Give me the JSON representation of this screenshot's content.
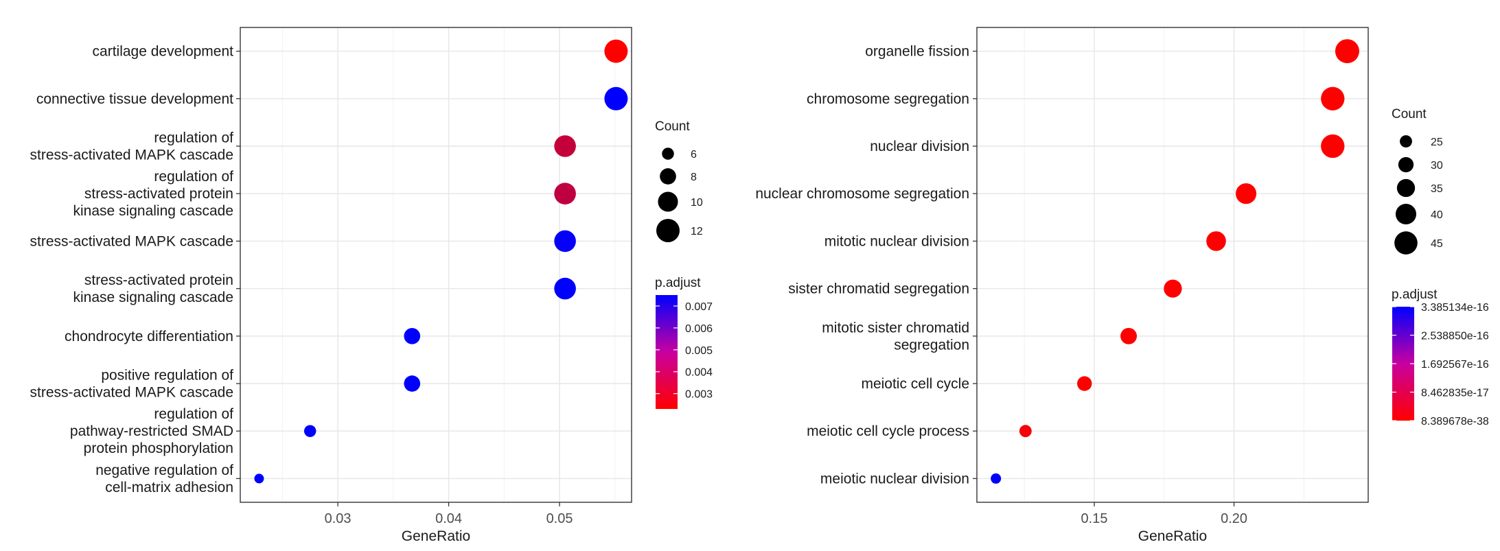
{
  "chart_data": [
    {
      "type": "scatter",
      "title": "",
      "xlabel": "GeneRatio",
      "ylabel": "",
      "xlim": [
        0.0212,
        0.0565
      ],
      "x_ticks": [
        {
          "value": 0.03,
          "label": "0.03"
        },
        {
          "value": 0.04,
          "label": "0.04"
        },
        {
          "value": 0.05,
          "label": "0.05"
        }
      ],
      "grid": true,
      "categories": [
        "cartilage development",
        "connective tissue development",
        "regulation of\nstress-activated MAPK cascade",
        "regulation of\nstress-activated protein\nkinase signaling cascade",
        "stress-activated MAPK cascade",
        "stress-activated protein\nkinase signaling cascade",
        "chondrocyte differentiation",
        "positive regulation of\nstress-activated MAPK cascade",
        "regulation of\npathway-restricted SMAD\nprotein phosphorylation",
        "negative regulation of\ncell-matrix adhesion"
      ],
      "points": [
        {
          "x": 0.0551,
          "count": 12,
          "p_adjust": 0.0023
        },
        {
          "x": 0.0551,
          "count": 12,
          "p_adjust": 0.0075
        },
        {
          "x": 0.0505,
          "count": 11,
          "p_adjust": 0.0035
        },
        {
          "x": 0.0505,
          "count": 11,
          "p_adjust": 0.0036
        },
        {
          "x": 0.0505,
          "count": 11,
          "p_adjust": 0.0074
        },
        {
          "x": 0.0505,
          "count": 11,
          "p_adjust": 0.0075
        },
        {
          "x": 0.0367,
          "count": 8,
          "p_adjust": 0.0075
        },
        {
          "x": 0.0367,
          "count": 8,
          "p_adjust": 0.0075
        },
        {
          "x": 0.0275,
          "count": 6,
          "p_adjust": 0.0075
        },
        {
          "x": 0.0229,
          "count": 5,
          "p_adjust": 0.0075
        }
      ],
      "size_legend": {
        "title": "Count",
        "range": [
          5,
          12
        ],
        "items": [
          6,
          8,
          10,
          12
        ]
      },
      "color_legend": {
        "title": "p.adjust",
        "low_color": "#FF0000",
        "high_color": "#0000FF",
        "min": 0.0023,
        "max": 0.0075,
        "ticks": [
          {
            "value": 0.007,
            "label": "0.007"
          },
          {
            "value": 0.006,
            "label": "0.006"
          },
          {
            "value": 0.005,
            "label": "0.005"
          },
          {
            "value": 0.004,
            "label": "0.004"
          },
          {
            "value": 0.003,
            "label": "0.003"
          }
        ]
      }
    },
    {
      "type": "scatter",
      "title": "",
      "xlabel": "GeneRatio",
      "ylabel": "",
      "xlim": [
        0.108,
        0.248
      ],
      "x_ticks": [
        {
          "value": 0.15,
          "label": "0.15"
        },
        {
          "value": 0.2,
          "label": "0.20"
        }
      ],
      "grid": true,
      "categories": [
        "organelle fission",
        "chromosome segregation",
        "nuclear division",
        "nuclear chromosome segregation",
        "mitotic nuclear division",
        "sister chromatid segregation",
        "mitotic sister chromatid\nsegregation",
        "meiotic cell cycle",
        "meiotic cell cycle process",
        "meiotic nuclear division"
      ],
      "points": [
        {
          "x": 0.2405,
          "count": 47,
          "p_adjust": 8.389678e-38
        },
        {
          "x": 0.2353,
          "count": 46,
          "p_adjust": 8.389678e-38
        },
        {
          "x": 0.2353,
          "count": 46,
          "p_adjust": 8.389678e-38
        },
        {
          "x": 0.2043,
          "count": 40,
          "p_adjust": 8.389678e-38
        },
        {
          "x": 0.1936,
          "count": 38,
          "p_adjust": 8.389678e-38
        },
        {
          "x": 0.1781,
          "count": 35,
          "p_adjust": 8.389678e-38
        },
        {
          "x": 0.1623,
          "count": 32,
          "p_adjust": 5e-20
        },
        {
          "x": 0.1465,
          "count": 29,
          "p_adjust": 1e-20
        },
        {
          "x": 0.1254,
          "count": 25,
          "p_adjust": 1e-17
        },
        {
          "x": 0.1148,
          "count": 22,
          "p_adjust": 3.385134e-16
        }
      ],
      "size_legend": {
        "title": "Count",
        "range": [
          22,
          47
        ],
        "items": [
          25,
          30,
          35,
          40,
          45
        ]
      },
      "color_legend": {
        "title": "p.adjust",
        "low_color": "#FF0000",
        "high_color": "#0000FF",
        "min": 8.389678e-38,
        "max": 3.385134e-16,
        "ticks": [
          {
            "value": 3.385134e-16,
            "label": "3.385134e-16"
          },
          {
            "value": 2.53885e-16,
            "label": "2.538850e-16"
          },
          {
            "value": 1.692567e-16,
            "label": "1.692567e-16"
          },
          {
            "value": 8.462835e-17,
            "label": "8.462835e-17"
          },
          {
            "value": 8.389678e-38,
            "label": "8.389678e-38"
          }
        ]
      }
    }
  ]
}
